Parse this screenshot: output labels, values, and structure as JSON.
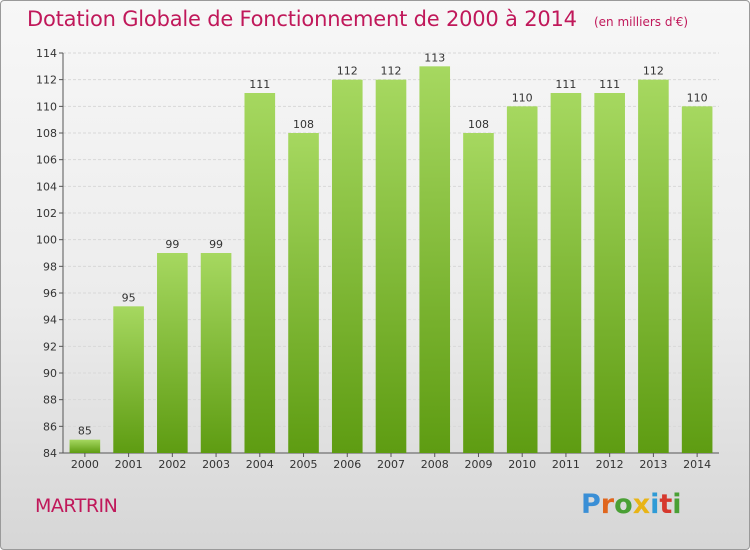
{
  "title": "Dotation Globale de Fonctionnement de 2000 à 2014",
  "unit": "(en milliers d'€)",
  "commune": "MARTRIN",
  "brand": "Proxiti",
  "colors": {
    "title": "#c0185a",
    "bar_top": "#a6d860",
    "bar_bottom": "#5e9c12",
    "grid": "#d8d8d8",
    "axis": "#555555"
  },
  "chart_data": {
    "type": "bar",
    "categories": [
      "2000",
      "2001",
      "2002",
      "2003",
      "2004",
      "2005",
      "2006",
      "2007",
      "2008",
      "2009",
      "2010",
      "2011",
      "2012",
      "2013",
      "2014"
    ],
    "values": [
      85,
      95,
      99,
      99,
      111,
      108,
      112,
      112,
      113,
      108,
      110,
      111,
      111,
      112,
      110
    ],
    "ylim": [
      84,
      114
    ],
    "yticks": [
      84,
      86,
      88,
      90,
      92,
      94,
      96,
      98,
      100,
      102,
      104,
      106,
      108,
      110,
      112,
      114
    ],
    "grid": true,
    "legend": "none"
  }
}
